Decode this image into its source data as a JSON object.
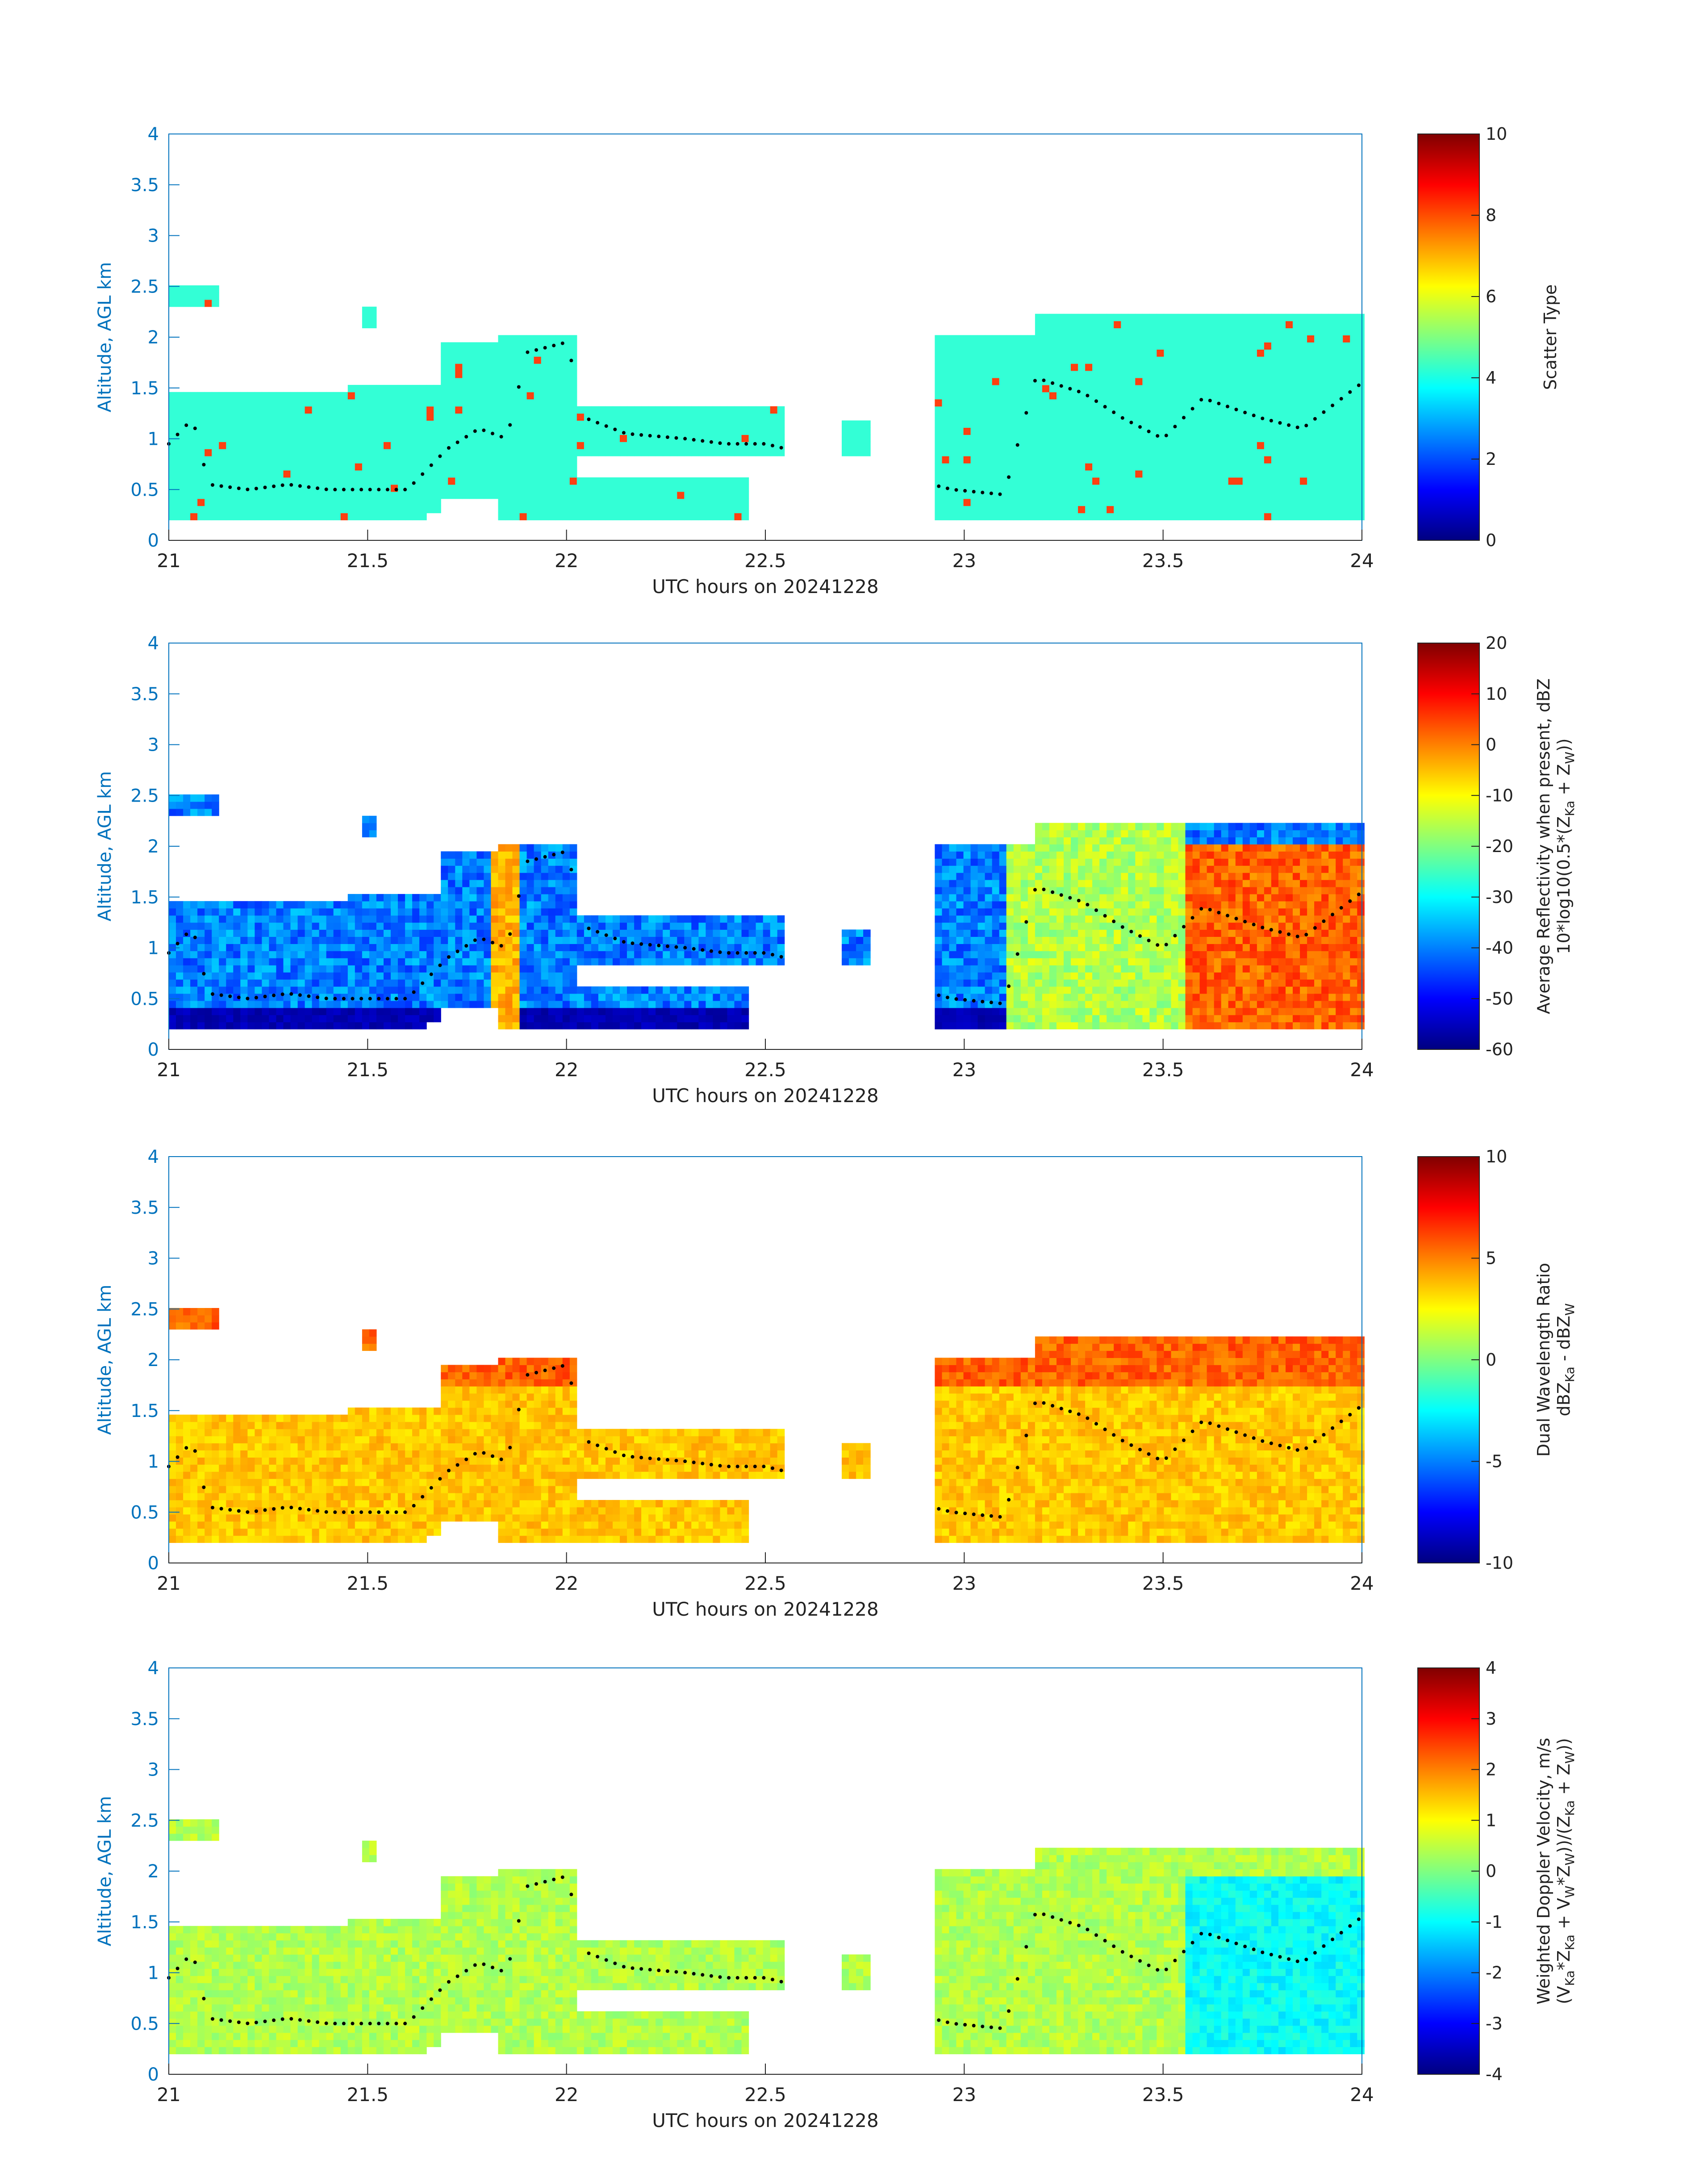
{
  "chart_data": [
    {
      "type": "heatmap",
      "xlabel": "UTC hours on 20241228",
      "ylabel": "Altitude, AGL km",
      "xlim": [
        21,
        24
      ],
      "ylim": [
        0,
        4
      ],
      "x_ticks": [
        "21",
        "21.5",
        "22",
        "22.5",
        "23",
        "23.5",
        "24"
      ],
      "y_ticks": [
        "0",
        "0.5",
        "1",
        "1.5",
        "2",
        "2.5",
        "3",
        "3.5",
        "4"
      ],
      "colorbar": {
        "label": "Scatter Type",
        "range": [
          0,
          10
        ],
        "ticks": [
          "0",
          "2",
          "4",
          "6",
          "8",
          "10"
        ],
        "colormap": "jet"
      },
      "dominant_value": 4,
      "overlay": "black dots marking layer boundaries"
    },
    {
      "type": "heatmap",
      "xlabel": "UTC hours on 20241228",
      "ylabel": "Altitude, AGL km",
      "xlim": [
        21,
        24
      ],
      "ylim": [
        0,
        4
      ],
      "x_ticks": [
        "21",
        "21.5",
        "22",
        "22.5",
        "23",
        "23.5",
        "24"
      ],
      "y_ticks": [
        "0",
        "0.5",
        "1",
        "1.5",
        "2",
        "2.5",
        "3",
        "3.5",
        "4"
      ],
      "colorbar": {
        "label_line1": "Average Reflectivity when present, dBZ",
        "label_line2": "10*log10(0.5*(Z",
        "label_sub1": "Ka",
        "label_mid": " + Z",
        "label_sub2": "W",
        "label_end": "))",
        "range": [
          -60,
          20
        ],
        "ticks": [
          "-60",
          "-50",
          "-40",
          "-30",
          "-20",
          "-10",
          "0",
          "10",
          "20"
        ],
        "colormap": "jet"
      },
      "overlay": "black dots marking layer boundaries"
    },
    {
      "type": "heatmap",
      "xlabel": "UTC hours on 20241228",
      "ylabel": "Altitude, AGL km",
      "xlim": [
        21,
        24
      ],
      "ylim": [
        0,
        4
      ],
      "x_ticks": [
        "21",
        "21.5",
        "22",
        "22.5",
        "23",
        "23.5",
        "24"
      ],
      "y_ticks": [
        "0",
        "0.5",
        "1",
        "1.5",
        "2",
        "2.5",
        "3",
        "3.5",
        "4"
      ],
      "colorbar": {
        "label_line1": "Dual Wavelength Ratio",
        "label_a": "dBZ",
        "label_sub1": "Ka",
        "label_b": " - dBZ",
        "label_sub2": "W",
        "range": [
          -10,
          10
        ],
        "ticks": [
          "-10",
          "-5",
          "0",
          "5",
          "10"
        ],
        "colormap": "jet"
      },
      "overlay": "black dots marking layer boundaries"
    },
    {
      "type": "heatmap",
      "xlabel": "UTC hours on 20241228",
      "ylabel": "Altitude, AGL km",
      "xlim": [
        21,
        24
      ],
      "ylim": [
        0,
        4
      ],
      "x_ticks": [
        "21",
        "21.5",
        "22",
        "22.5",
        "23",
        "23.5",
        "24"
      ],
      "y_ticks": [
        "0",
        "0.5",
        "1",
        "1.5",
        "2",
        "2.5",
        "3",
        "3.5",
        "4"
      ],
      "colorbar": {
        "label_line1": "Weighted Doppler Velocity, m/s",
        "label_l2_a": "(V",
        "label_l2_s1": "Ka",
        "label_l2_b": "*Z",
        "label_l2_s2": "Ka",
        "label_l2_c": " + V",
        "label_l2_s3": "W",
        "label_l2_d": "*Z",
        "label_l2_s4": "W",
        "label_l2_e": "))/(Z",
        "label_l2_s5": "Ka",
        "label_l2_f": " + Z",
        "label_l2_s6": "W",
        "label_l2_g": "))",
        "range": [
          -4,
          4
        ],
        "ticks": [
          "-4",
          "-3",
          "-2",
          "-1",
          "0",
          "1",
          "2",
          "3",
          "4"
        ],
        "colormap": "jet"
      },
      "overlay": "black dots marking layer boundaries"
    }
  ],
  "cloud_regions_hours_km": [
    {
      "t0": 21.0,
      "t1": 21.12,
      "z0": 2.3,
      "z1": 2.5
    },
    {
      "t0": 21.0,
      "t1": 21.65,
      "z0": 0.2,
      "z1": 1.48
    },
    {
      "t0": 21.45,
      "t1": 21.68,
      "z0": 0.3,
      "z1": 1.55
    },
    {
      "t0": 21.48,
      "t1": 21.52,
      "z0": 2.1,
      "z1": 2.3
    },
    {
      "t0": 21.68,
      "t1": 21.82,
      "z0": 0.4,
      "z1": 1.95
    },
    {
      "t0": 21.82,
      "t1": 22.02,
      "z0": 0.2,
      "z1": 2.05
    },
    {
      "t0": 22.0,
      "t1": 22.55,
      "z0": 0.8,
      "z1": 1.35
    },
    {
      "t0": 22.0,
      "t1": 22.45,
      "z0": 0.2,
      "z1": 0.65
    },
    {
      "t0": 22.7,
      "t1": 22.77,
      "z0": 0.8,
      "z1": 1.2
    },
    {
      "t0": 22.92,
      "t1": 23.22,
      "z0": 0.2,
      "z1": 2.0
    },
    {
      "t0": 23.18,
      "t1": 23.55,
      "z0": 0.2,
      "z1": 2.25
    },
    {
      "t0": 23.55,
      "t1": 24.0,
      "z0": 0.2,
      "z1": 2.25
    }
  ]
}
